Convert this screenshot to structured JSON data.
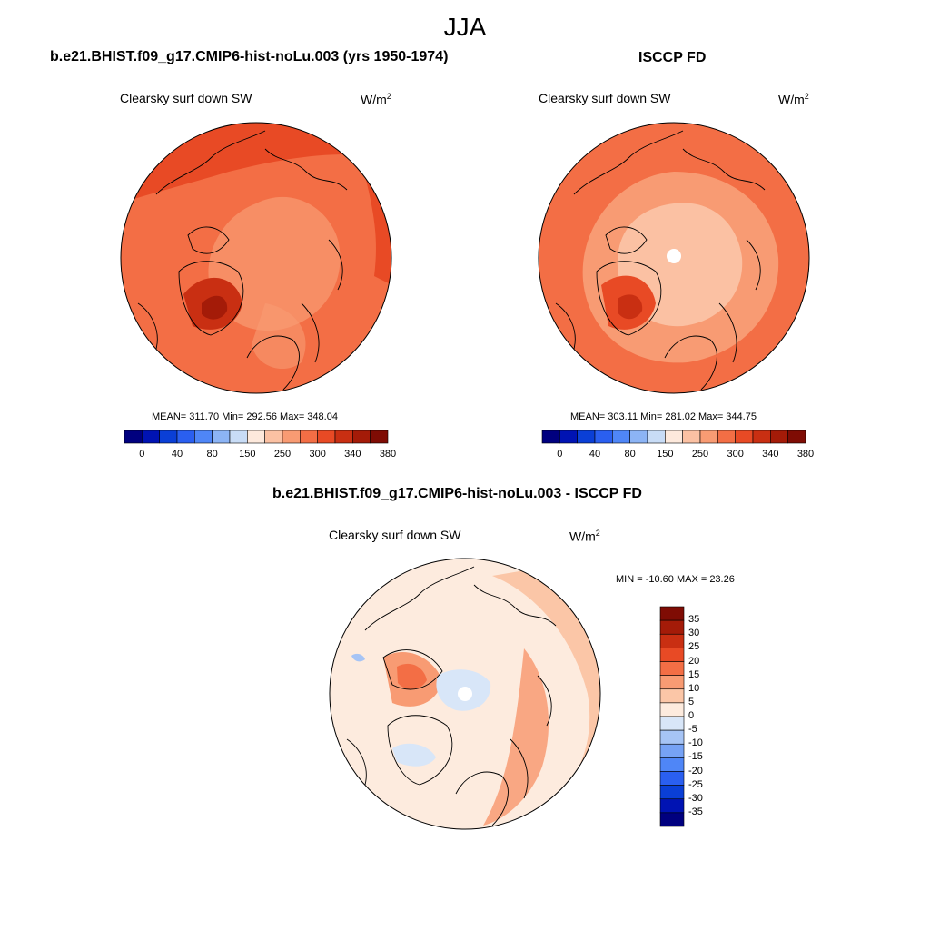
{
  "season": "JJA",
  "colors": {
    "map_scale": [
      "#00007f",
      "#0013b3",
      "#0a3fd6",
      "#2a5ff0",
      "#4f86f7",
      "#8cb4f5",
      "#c8dcf6",
      "#fde9dc",
      "#fbc1a3",
      "#f89b73",
      "#f36e45",
      "#e84a25",
      "#c92f12",
      "#a41b08",
      "#7f0c04"
    ],
    "diff_scale": [
      "#00007f",
      "#0013b3",
      "#0a3fd6",
      "#2a5ff0",
      "#4f86f7",
      "#76a2f5",
      "#a6c4f5",
      "#d8e6f8",
      "#fdebde",
      "#fbc6a7",
      "#f89b73",
      "#f36e45",
      "#e84a25",
      "#c92f12",
      "#a41b08",
      "#7f0c04"
    ],
    "land_outline": "#000000"
  },
  "panels": {
    "model": {
      "title": "b.e21.BHIST.f09_g17.CMIP6-hist-noLu.003 (yrs 1950-1974)",
      "variable": "Clearsky surf down SW",
      "units": "W/m",
      "units_exp": "2",
      "stats": "MEAN= 311.70  Min= 292.56  Max= 348.04"
    },
    "obs": {
      "title": "ISCCP FD",
      "variable": "Clearsky surf down SW",
      "units": "W/m",
      "units_exp": "2",
      "stats": "MEAN= 303.11  Min= 281.02  Max= 344.75"
    },
    "diff": {
      "title": "b.e21.BHIST.f09_g17.CMIP6-hist-noLu.003 - ISCCP FD",
      "variable": "Clearsky surf down SW",
      "units": "W/m",
      "units_exp": "2",
      "stats": "MIN = -10.60 MAX =  23.26"
    }
  },
  "colorbar_ticks": [
    "0",
    "40",
    "80",
    "150",
    "250",
    "300",
    "340",
    "380"
  ],
  "diff_colorbar_ticks": [
    "35",
    "30",
    "25",
    "20",
    "15",
    "10",
    "5",
    "0",
    "-5",
    "-10",
    "-15",
    "-20",
    "-25",
    "-30",
    "-35"
  ]
}
